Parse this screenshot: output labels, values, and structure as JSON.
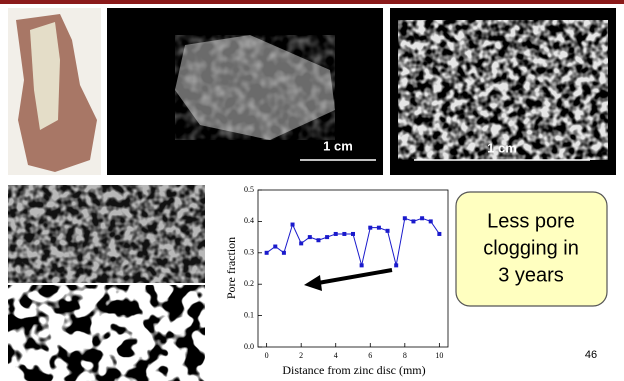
{
  "chart_data": {
    "type": "line",
    "xlabel": "Distance from zinc disc (mm)",
    "ylabel": "Pore fraction",
    "x": [
      0,
      0.5,
      1,
      1.5,
      2,
      2.5,
      3,
      3.5,
      4,
      4.5,
      5,
      5.5,
      6,
      6.5,
      7,
      7.5,
      8,
      8.5,
      9,
      9.5,
      10
    ],
    "series": [
      {
        "color": "#1a1acc",
        "values": [
          0.3,
          0.32,
          0.3,
          0.39,
          0.33,
          0.35,
          0.34,
          0.35,
          0.36,
          0.36,
          0.36,
          0.26,
          0.38,
          0.38,
          0.37,
          0.26,
          0.41,
          0.4,
          0.41,
          0.4,
          0.36
        ]
      }
    ],
    "xlim": [
      -0.5,
      10.5
    ],
    "xticks": [
      0,
      2,
      4,
      6,
      8,
      10
    ],
    "ylim": [
      0,
      0.5
    ],
    "yticks": [
      {
        "value": 0,
        "label": "0.0"
      },
      0.1,
      0.2,
      0.3,
      0.4,
      0.5
    ]
  },
  "scale_bars": [
    "1 cm",
    "1 cm"
  ],
  "callout": [
    "Less pore",
    "clogging in",
    "3 years"
  ],
  "page_number": "46"
}
